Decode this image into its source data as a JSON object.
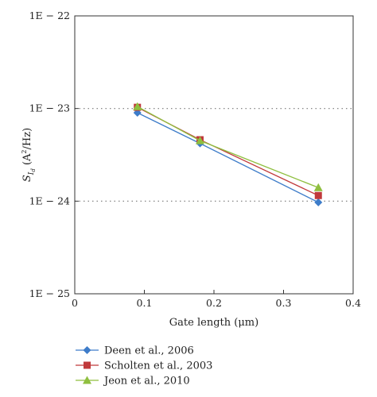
{
  "chart_data": {
    "type": "line",
    "xlabel": "Gate length (μm)",
    "ylabel": "S_Id (A^2/Hz)",
    "xlim": [
      0,
      0.4
    ],
    "ylim": [
      1e-25,
      1e-22
    ],
    "yscale": "log",
    "x_ticks": [
      "0",
      "0.1",
      "0.2",
      "0.3",
      "0.4"
    ],
    "y_ticks": [
      "1E − 25",
      "1E − 24",
      "1E − 23",
      "1E − 22"
    ],
    "grid": "dotted horizontal at 1E − 24 and 1E − 23",
    "legend": "bottom-left, below plot",
    "series": [
      {
        "name": "Deen et al., 2006",
        "color": "#3d7cc9",
        "marker": "diamond",
        "x": [
          0.09,
          0.18,
          0.35
        ],
        "y": [
          9e-24,
          4.2e-24,
          9.7e-25
        ]
      },
      {
        "name": "Scholten et al., 2003",
        "color": "#c0393b",
        "marker": "square",
        "x": [
          0.09,
          0.18,
          0.35
        ],
        "y": [
          1.03e-23,
          4.6e-24,
          1.15e-24
        ]
      },
      {
        "name": "Jeon et al., 2010",
        "color": "#8fbf3f",
        "marker": "triangle",
        "x": [
          0.09,
          0.18,
          0.35
        ],
        "y": [
          1.05e-23,
          4.5e-24,
          1.4e-24
        ]
      }
    ]
  }
}
